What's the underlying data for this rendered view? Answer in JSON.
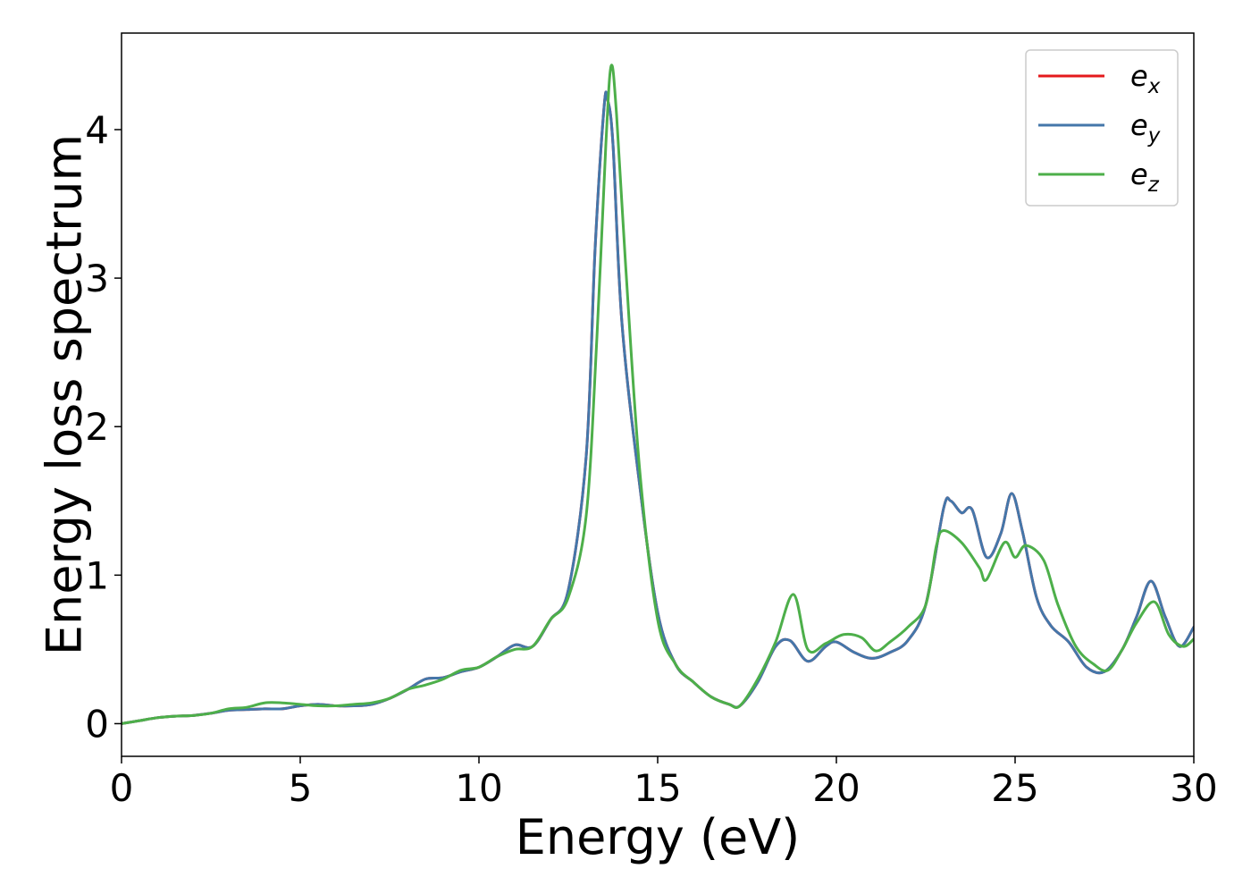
{
  "chart_data": {
    "type": "line",
    "title": "",
    "xlabel": "Energy (eV)",
    "ylabel": "Energy loss spectrum",
    "xlim": [
      0,
      30
    ],
    "ylim": [
      -0.22,
      4.65
    ],
    "xticks": [
      0,
      5,
      10,
      15,
      20,
      25,
      30
    ],
    "yticks": [
      0,
      1,
      2,
      3,
      4
    ],
    "grid": false,
    "legend_position": "top-right",
    "series": [
      {
        "name": "e_x",
        "label_base": "e",
        "label_sub": "x",
        "color": "#e41a1c",
        "x": [
          0,
          0.5,
          1,
          1.5,
          2,
          2.5,
          3,
          3.5,
          4,
          4.5,
          5,
          5.5,
          6,
          6.5,
          7,
          7.5,
          8,
          8.5,
          9,
          9.5,
          10,
          10.5,
          11,
          11.5,
          12,
          12.5,
          13,
          13.25,
          13.5,
          13.6,
          13.75,
          14,
          14.5,
          15,
          15.5,
          16,
          16.5,
          17,
          17.3,
          17.8,
          18.3,
          18.7,
          19.2,
          19.7,
          20,
          20.5,
          21,
          21.5,
          22,
          22.5,
          23,
          23.2,
          23.5,
          23.8,
          24.2,
          24.6,
          24.9,
          25.2,
          25.6,
          26,
          26.5,
          27,
          27.5,
          28,
          28.4,
          28.8,
          29.2,
          29.6,
          30
        ],
        "y": [
          0,
          0.02,
          0.04,
          0.05,
          0.055,
          0.07,
          0.09,
          0.095,
          0.1,
          0.1,
          0.12,
          0.13,
          0.12,
          0.12,
          0.13,
          0.17,
          0.23,
          0.3,
          0.31,
          0.35,
          0.38,
          0.45,
          0.53,
          0.52,
          0.7,
          0.9,
          1.8,
          3.2,
          4.15,
          4.2,
          3.9,
          2.7,
          1.6,
          0.75,
          0.4,
          0.28,
          0.18,
          0.13,
          0.12,
          0.28,
          0.52,
          0.56,
          0.42,
          0.52,
          0.55,
          0.48,
          0.44,
          0.48,
          0.56,
          0.8,
          1.45,
          1.5,
          1.42,
          1.44,
          1.12,
          1.28,
          1.55,
          1.3,
          0.85,
          0.66,
          0.55,
          0.38,
          0.35,
          0.5,
          0.72,
          0.96,
          0.72,
          0.52,
          0.65
        ]
      },
      {
        "name": "e_y",
        "label_base": "e",
        "label_sub": "y",
        "color": "#4477aa",
        "x": [
          0,
          0.5,
          1,
          1.5,
          2,
          2.5,
          3,
          3.5,
          4,
          4.5,
          5,
          5.5,
          6,
          6.5,
          7,
          7.5,
          8,
          8.5,
          9,
          9.5,
          10,
          10.5,
          11,
          11.5,
          12,
          12.5,
          13,
          13.25,
          13.5,
          13.6,
          13.75,
          14,
          14.5,
          15,
          15.5,
          16,
          16.5,
          17,
          17.3,
          17.8,
          18.3,
          18.7,
          19.2,
          19.7,
          20,
          20.5,
          21,
          21.5,
          22,
          22.5,
          23,
          23.2,
          23.5,
          23.8,
          24.2,
          24.6,
          24.9,
          25.2,
          25.6,
          26,
          26.5,
          27,
          27.5,
          28,
          28.4,
          28.8,
          29.2,
          29.6,
          30
        ],
        "y": [
          0,
          0.02,
          0.04,
          0.05,
          0.055,
          0.07,
          0.09,
          0.095,
          0.1,
          0.1,
          0.12,
          0.13,
          0.12,
          0.12,
          0.13,
          0.17,
          0.23,
          0.3,
          0.31,
          0.35,
          0.38,
          0.45,
          0.53,
          0.52,
          0.7,
          0.9,
          1.8,
          3.2,
          4.15,
          4.2,
          3.9,
          2.7,
          1.6,
          0.75,
          0.4,
          0.28,
          0.18,
          0.13,
          0.12,
          0.28,
          0.52,
          0.56,
          0.42,
          0.52,
          0.55,
          0.48,
          0.44,
          0.48,
          0.56,
          0.8,
          1.45,
          1.5,
          1.42,
          1.44,
          1.12,
          1.28,
          1.55,
          1.3,
          0.85,
          0.66,
          0.55,
          0.38,
          0.35,
          0.5,
          0.72,
          0.96,
          0.72,
          0.52,
          0.65
        ]
      },
      {
        "name": "e_z",
        "label_base": "e",
        "label_sub": "z",
        "color": "#4daf4a",
        "x": [
          0,
          0.5,
          1,
          1.5,
          2,
          2.5,
          3,
          3.5,
          4,
          4.5,
          5,
          5.5,
          6,
          6.5,
          7,
          7.5,
          8,
          8.5,
          9,
          9.5,
          10,
          10.5,
          11,
          11.5,
          12,
          12.5,
          13,
          13.3,
          13.55,
          13.7,
          13.85,
          14.1,
          14.5,
          15,
          15.5,
          16,
          16.5,
          17,
          17.3,
          17.8,
          18.3,
          18.8,
          19.2,
          19.7,
          20.2,
          20.7,
          21.1,
          21.5,
          22,
          22.5,
          22.8,
          23,
          23.5,
          24,
          24.2,
          24.7,
          25,
          25.3,
          25.8,
          26.2,
          26.7,
          27.2,
          27.6,
          28,
          28.4,
          28.9,
          29.3,
          29.7,
          30
        ],
        "y": [
          0,
          0.02,
          0.04,
          0.05,
          0.055,
          0.07,
          0.1,
          0.11,
          0.14,
          0.14,
          0.13,
          0.12,
          0.12,
          0.13,
          0.14,
          0.17,
          0.23,
          0.26,
          0.3,
          0.36,
          0.38,
          0.45,
          0.5,
          0.52,
          0.7,
          0.85,
          1.4,
          2.6,
          3.9,
          4.43,
          4.1,
          3.1,
          1.7,
          0.7,
          0.4,
          0.28,
          0.18,
          0.13,
          0.12,
          0.3,
          0.55,
          0.87,
          0.5,
          0.54,
          0.6,
          0.58,
          0.49,
          0.55,
          0.65,
          0.8,
          1.2,
          1.3,
          1.22,
          1.05,
          0.97,
          1.22,
          1.12,
          1.2,
          1.1,
          0.8,
          0.52,
          0.4,
          0.36,
          0.5,
          0.68,
          0.82,
          0.6,
          0.52,
          0.57
        ]
      }
    ]
  }
}
